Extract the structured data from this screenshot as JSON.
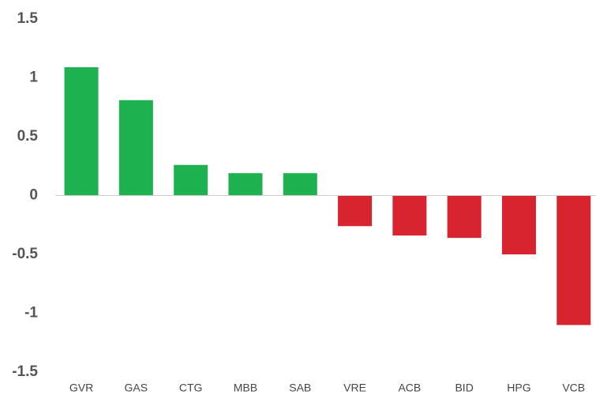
{
  "chart_data": {
    "type": "bar",
    "categories": [
      "GVR",
      "GAS",
      "CTG",
      "MBB",
      "SAB",
      "VRE",
      "ACB",
      "BID",
      "HPG",
      "VCB"
    ],
    "values": [
      1.09,
      0.81,
      0.26,
      0.19,
      0.19,
      -0.26,
      -0.34,
      -0.36,
      -0.5,
      -1.1
    ],
    "colors": [
      "#1db14f",
      "#1db14f",
      "#1db14f",
      "#1db14f",
      "#1db14f",
      "#d7242f",
      "#d7242f",
      "#d7242f",
      "#d7242f",
      "#d7242f"
    ],
    "ylim": [
      -1.5,
      1.5
    ],
    "yticks": [
      -1.5,
      -1,
      -0.5,
      0,
      0.5,
      1,
      1.5
    ],
    "grid": false
  }
}
